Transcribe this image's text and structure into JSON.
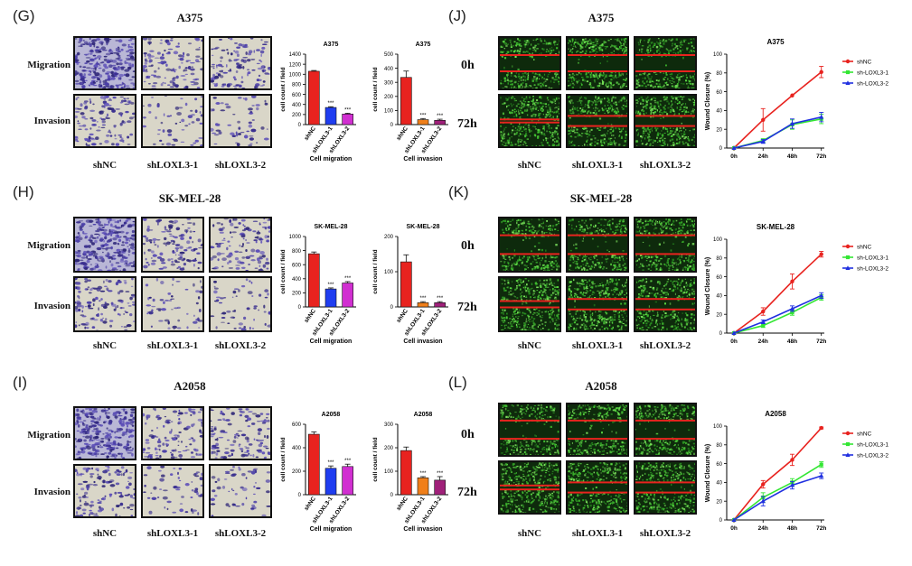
{
  "colors": {
    "shNC": "#e8231f",
    "knock1_bar": "#1f3df0",
    "knock2_bar": "#d12fd1",
    "knock1_inv": "#f07f1a",
    "knock2_inv": "#a0207a",
    "green": "#33e633",
    "blue": "#2030e0",
    "red_line": "#e8231f"
  },
  "cells": [
    {
      "key": "A375",
      "left": {
        "letter": "(G)",
        "title": "A375",
        "rows": [
          "Migration",
          "Invasion"
        ],
        "cols": [
          "shNC",
          "shLOXL3-1",
          "shLOXL3-2"
        ]
      },
      "right": {
        "letter": "(J)",
        "title": "A375",
        "rows": [
          "0h",
          "72h"
        ],
        "cols": [
          "shNC",
          "shLOXL3-1",
          "shLOXL3-2"
        ]
      }
    },
    {
      "key": "SK-MEL-28",
      "left": {
        "letter": "(H)",
        "title": "SK-MEL-28",
        "rows": [
          "Migration",
          "Invasion"
        ],
        "cols": [
          "shNC",
          "shLOXL3-1",
          "shLOXL3-2"
        ]
      },
      "right": {
        "letter": "(K)",
        "title": "SK-MEL-28",
        "rows": [
          "0h",
          "72h"
        ],
        "cols": [
          "shNC",
          "shLOXL3-1",
          "shLOXL3-2"
        ]
      }
    },
    {
      "key": "A2058",
      "left": {
        "letter": "(I)",
        "title": "A2058",
        "rows": [
          "Migration",
          "Invasion"
        ],
        "cols": [
          "shNC",
          "shLOXL3-1",
          "shLOXL3-2"
        ]
      },
      "right": {
        "letter": "(L)",
        "title": "A2058",
        "rows": [
          "0h",
          "72h"
        ],
        "cols": [
          "shNC",
          "shLOXL3-1",
          "shLOXL3-2"
        ]
      }
    }
  ],
  "chart_data": [
    {
      "type": "bar",
      "title": "A375",
      "xlabel": "Cell migration",
      "ylabel": "cell count / field",
      "categories": [
        "shNC",
        "shLOXL3-1",
        "shLOXL3-2"
      ],
      "values": [
        1060,
        340,
        210
      ],
      "errors": [
        15,
        15,
        15
      ],
      "sig": [
        "",
        "***",
        "***"
      ],
      "ylim": [
        0,
        1400
      ],
      "yticks": [
        0,
        200,
        400,
        600,
        800,
        1000,
        1200,
        1400
      ],
      "colors": [
        "#e8231f",
        "#1f3df0",
        "#d12fd1"
      ]
    },
    {
      "type": "bar",
      "title": "A375",
      "xlabel": "Cell invasion",
      "ylabel": "cell count / field",
      "categories": [
        "shNC",
        "shLOXL3-1",
        "shLOXL3-2"
      ],
      "values": [
        335,
        35,
        30
      ],
      "errors": [
        45,
        8,
        8
      ],
      "sig": [
        "",
        "***",
        "***"
      ],
      "ylim": [
        0,
        500
      ],
      "yticks": [
        0,
        100,
        200,
        300,
        400,
        500
      ],
      "colors": [
        "#e8231f",
        "#f07f1a",
        "#a0207a"
      ]
    },
    {
      "type": "line",
      "title": "A375",
      "xlabel": "",
      "ylabel": "Wound Closure (%)",
      "categories": [
        "0h",
        "24h",
        "48h",
        "72h"
      ],
      "ylim": [
        0,
        100
      ],
      "yticks": [
        0,
        20,
        40,
        60,
        80,
        100
      ],
      "series": [
        {
          "name": "shNC",
          "values": [
            0,
            30,
            56,
            81
          ],
          "errors": [
            0,
            12,
            0,
            6
          ],
          "color": "#e8231f",
          "marker": "circle"
        },
        {
          "name": "sh-LOXL3-1",
          "values": [
            0,
            8,
            25,
            31
          ],
          "errors": [
            0,
            2,
            5,
            5
          ],
          "color": "#33e633",
          "marker": "square"
        },
        {
          "name": "sh-LOXL3-2",
          "values": [
            0,
            7,
            26,
            33
          ],
          "errors": [
            0,
            2,
            5,
            5
          ],
          "color": "#2030e0",
          "marker": "triangle"
        }
      ],
      "legend": "right"
    },
    {
      "type": "bar",
      "title": "SK-MEL-28",
      "xlabel": "Cell migration",
      "ylabel": "cell count / field",
      "categories": [
        "shNC",
        "shLOXL3-1",
        "shLOXL3-2"
      ],
      "values": [
        755,
        255,
        340
      ],
      "errors": [
        25,
        15,
        20
      ],
      "sig": [
        "",
        "***",
        "***"
      ],
      "ylim": [
        0,
        1000
      ],
      "yticks": [
        0,
        200,
        400,
        600,
        800,
        1000
      ],
      "colors": [
        "#e8231f",
        "#1f3df0",
        "#d12fd1"
      ]
    },
    {
      "type": "bar",
      "title": "SK-MEL-28",
      "xlabel": "Cell invasion",
      "ylabel": "cell count / field",
      "categories": [
        "shNC",
        "shLOXL3-1",
        "shLOXL3-2"
      ],
      "values": [
        128,
        12,
        12
      ],
      "errors": [
        20,
        3,
        3
      ],
      "sig": [
        "",
        "***",
        "***"
      ],
      "ylim": [
        0,
        200
      ],
      "yticks": [
        0,
        100,
        200
      ],
      "colors": [
        "#e8231f",
        "#f07f1a",
        "#a0207a"
      ]
    },
    {
      "type": "line",
      "title": "SK-MEL-28",
      "xlabel": "",
      "ylabel": "Wound Closure (%)",
      "categories": [
        "0h",
        "24h",
        "48h",
        "72h"
      ],
      "ylim": [
        0,
        100
      ],
      "yticks": [
        0,
        20,
        40,
        60,
        80,
        100
      ],
      "series": [
        {
          "name": "shNC",
          "values": [
            0,
            23,
            55,
            84
          ],
          "errors": [
            0,
            4,
            8,
            3
          ],
          "color": "#e8231f",
          "marker": "circle"
        },
        {
          "name": "sh-LOXL3-1",
          "values": [
            0,
            8,
            22,
            38
          ],
          "errors": [
            0,
            2,
            3,
            3
          ],
          "color": "#33e633",
          "marker": "square"
        },
        {
          "name": "sh-LOXL3-2",
          "values": [
            0,
            12,
            26,
            40
          ],
          "errors": [
            0,
            2,
            3,
            3
          ],
          "color": "#2030e0",
          "marker": "triangle"
        }
      ],
      "legend": "right"
    },
    {
      "type": "bar",
      "title": "A2058",
      "xlabel": "Cell migration",
      "ylabel": "cell count / field",
      "categories": [
        "shNC",
        "shLOXL3-1",
        "shLOXL3-2"
      ],
      "values": [
        515,
        225,
        240
      ],
      "errors": [
        20,
        20,
        20
      ],
      "sig": [
        "",
        "***",
        "***"
      ],
      "ylim": [
        0,
        600
      ],
      "yticks": [
        0,
        200,
        400,
        600
      ],
      "colors": [
        "#e8231f",
        "#1f3df0",
        "#d12fd1"
      ]
    },
    {
      "type": "bar",
      "title": "A2058",
      "xlabel": "Cell invasion",
      "ylabel": "cell count / field",
      "categories": [
        "shNC",
        "shLOXL3-1",
        "shLOXL3-2"
      ],
      "values": [
        188,
        72,
        62
      ],
      "errors": [
        15,
        5,
        15
      ],
      "sig": [
        "",
        "***",
        "***"
      ],
      "ylim": [
        0,
        300
      ],
      "yticks": [
        0,
        100,
        200,
        300
      ],
      "colors": [
        "#e8231f",
        "#f07f1a",
        "#a0207a"
      ]
    },
    {
      "type": "line",
      "title": "A2058",
      "xlabel": "",
      "ylabel": "Wound Closure (%)",
      "categories": [
        "0h",
        "24h",
        "48h",
        "72h"
      ],
      "ylim": [
        0,
        100
      ],
      "yticks": [
        0,
        20,
        40,
        60,
        80,
        100
      ],
      "series": [
        {
          "name": "shNC",
          "values": [
            0,
            38,
            64,
            98
          ],
          "errors": [
            0,
            4,
            6,
            1
          ],
          "color": "#e8231f",
          "marker": "circle"
        },
        {
          "name": "sh-LOXL3-1",
          "values": [
            0,
            24,
            40,
            59
          ],
          "errors": [
            0,
            5,
            4,
            3
          ],
          "color": "#33e633",
          "marker": "square"
        },
        {
          "name": "sh-LOXL3-2",
          "values": [
            0,
            20,
            37,
            47
          ],
          "errors": [
            0,
            5,
            4,
            3
          ],
          "color": "#2030e0",
          "marker": "triangle"
        }
      ],
      "legend": "right"
    }
  ]
}
